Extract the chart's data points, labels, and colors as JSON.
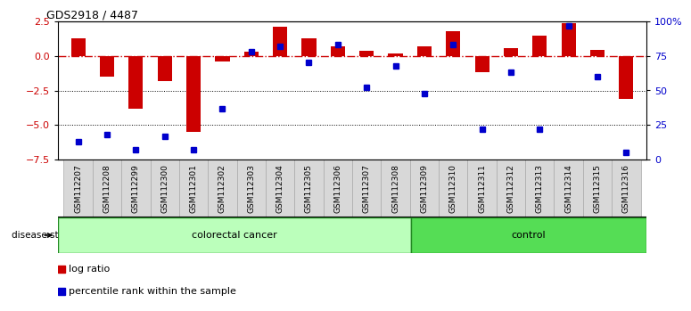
{
  "title": "GDS2918 / 4487",
  "samples": [
    "GSM112207",
    "GSM112208",
    "GSM112299",
    "GSM112300",
    "GSM112301",
    "GSM112302",
    "GSM112303",
    "GSM112304",
    "GSM112305",
    "GSM112306",
    "GSM112307",
    "GSM112308",
    "GSM112309",
    "GSM112310",
    "GSM112311",
    "GSM112312",
    "GSM112313",
    "GSM112314",
    "GSM112315",
    "GSM112316"
  ],
  "log_ratio": [
    1.3,
    -1.5,
    -3.8,
    -1.8,
    -5.5,
    -0.4,
    0.3,
    2.1,
    1.3,
    0.7,
    0.4,
    0.15,
    0.7,
    1.8,
    -1.2,
    0.55,
    1.5,
    2.4,
    0.45,
    -3.1
  ],
  "percentile": [
    13,
    18,
    7,
    17,
    7,
    37,
    78,
    82,
    70,
    83,
    52,
    68,
    48,
    83,
    22,
    63,
    22,
    97,
    60,
    5
  ],
  "colorectal_count": 12,
  "control_count": 8,
  "bar_color": "#cc0000",
  "dot_color": "#0000cc",
  "dashed_line_color": "#cc0000",
  "ylim_left": [
    -7.5,
    2.5
  ],
  "ylim_right": [
    0,
    100
  ],
  "yticks_left": [
    2.5,
    0.0,
    -2.5,
    -5.0,
    -7.5
  ],
  "yticks_right": [
    0,
    25,
    50,
    75,
    100
  ],
  "colorectal_color": "#bbffbb",
  "control_color": "#55dd55",
  "label_log_ratio": "log ratio",
  "label_percentile": "percentile rank within the sample",
  "disease_state_label": "disease state",
  "colorectal_label": "colorectal cancer",
  "control_label": "control",
  "bar_width": 0.5,
  "dot_size": 4
}
